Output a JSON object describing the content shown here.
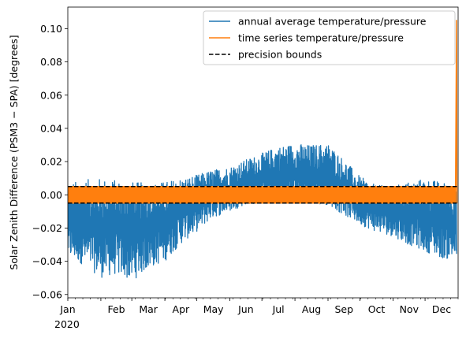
{
  "chart_data": {
    "type": "line",
    "title": "",
    "xlabel": "",
    "ylabel": "Solar Zenith Difference (PSM3 − SPA) [degrees]",
    "x_range": [
      "2020-01-01",
      "2020-12-31"
    ],
    "ylim": [
      -0.062,
      0.113
    ],
    "x_ticks": [
      {
        "date": "2020-01-01",
        "label": "Jan"
      },
      {
        "date": "2020-02-01",
        "label": "Feb"
      },
      {
        "date": "2020-03-01",
        "label": "Mar"
      },
      {
        "date": "2020-04-01",
        "label": "Apr"
      },
      {
        "date": "2020-05-01",
        "label": "May"
      },
      {
        "date": "2020-06-01",
        "label": "Jun"
      },
      {
        "date": "2020-07-01",
        "label": "Jul"
      },
      {
        "date": "2020-08-01",
        "label": "Aug"
      },
      {
        "date": "2020-09-01",
        "label": "Sep"
      },
      {
        "date": "2020-10-01",
        "label": "Oct"
      },
      {
        "date": "2020-11-01",
        "label": "Nov"
      },
      {
        "date": "2020-12-01",
        "label": "Dec"
      }
    ],
    "x_year_label": "2020",
    "y_ticks": [
      -0.06,
      -0.04,
      -0.02,
      0.0,
      0.02,
      0.04,
      0.06,
      0.08,
      0.1
    ],
    "y_tick_labels": [
      "−0.06",
      "−0.04",
      "−0.02",
      "0.00",
      "0.02",
      "0.04",
      "0.06",
      "0.08",
      "0.10"
    ],
    "grid": false,
    "legend_position": "top-right",
    "series": [
      {
        "name": "annual average temperature/pressure",
        "color": "#1f77b4",
        "style": "solid",
        "envelope": {
          "dates": [
            "2020-01-01",
            "2020-01-15",
            "2020-02-01",
            "2020-02-15",
            "2020-03-01",
            "2020-03-15",
            "2020-04-01",
            "2020-04-15",
            "2020-05-01",
            "2020-05-15",
            "2020-06-01",
            "2020-06-15",
            "2020-07-01",
            "2020-07-15",
            "2020-08-01",
            "2020-08-15",
            "2020-09-01",
            "2020-09-15",
            "2020-10-01",
            "2020-10-15",
            "2020-11-01",
            "2020-11-15",
            "2020-12-01",
            "2020-12-15",
            "2020-12-31"
          ],
          "upper": [
            0.007,
            0.009,
            0.01,
            0.009,
            0.008,
            0.007,
            0.008,
            0.01,
            0.012,
            0.015,
            0.017,
            0.021,
            0.025,
            0.029,
            0.031,
            0.03,
            0.031,
            0.022,
            0.011,
            0.006,
            0.005,
            0.008,
            0.01,
            0.008,
            0.007
          ],
          "lower": [
            -0.038,
            -0.042,
            -0.05,
            -0.048,
            -0.052,
            -0.045,
            -0.04,
            -0.03,
            -0.022,
            -0.014,
            -0.01,
            -0.006,
            -0.005,
            -0.005,
            -0.005,
            -0.005,
            -0.006,
            -0.012,
            -0.018,
            -0.022,
            -0.025,
            -0.03,
            -0.034,
            -0.038,
            -0.04
          ]
        }
      },
      {
        "name": "time series temperature/pressure",
        "color": "#ff7f0e",
        "style": "solid",
        "band": [
          -0.005,
          0.005
        ],
        "end_spike": 0.105
      },
      {
        "name": "precision bounds",
        "color": "#000000",
        "style": "dashed",
        "values": [
          0.005,
          -0.005
        ]
      }
    ]
  }
}
